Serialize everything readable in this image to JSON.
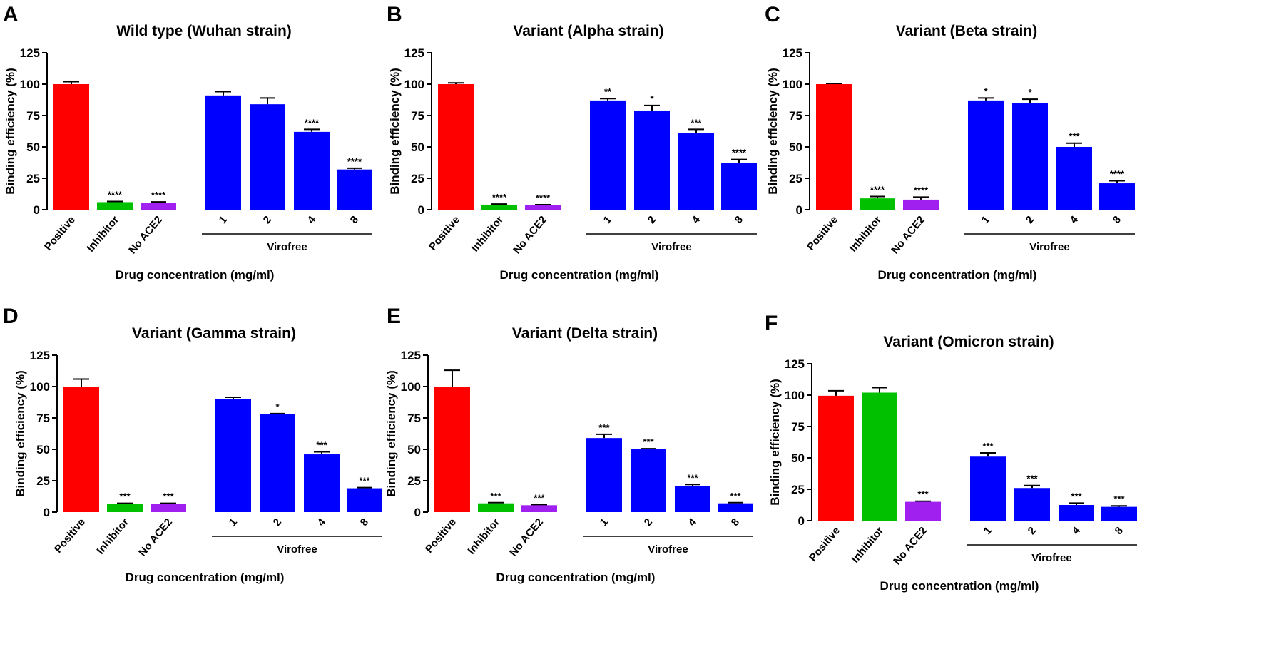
{
  "colors": {
    "positive": "#ff0000",
    "inhibitor": "#00c000",
    "no_ace2": "#a020f0",
    "virofree": "#0000ff"
  },
  "chart_data": [
    {
      "panel": "A",
      "type": "bar",
      "title": "Wild type (Wuhan strain)",
      "ylabel": "Binding efficiency (%)",
      "xlabel": "Drug concentration (mg/ml)",
      "group_label": "Virofree",
      "ylim": [
        0,
        125
      ],
      "yticks": [
        0,
        25,
        50,
        75,
        100,
        125
      ],
      "categories": [
        "Positive",
        "Inhibitor",
        "No ACE2",
        "1",
        "2",
        "4",
        "8"
      ],
      "values": [
        100,
        6,
        5.5,
        91,
        84,
        62,
        32
      ],
      "errors": [
        2,
        0.5,
        0.7,
        3,
        5,
        2,
        1
      ],
      "significance": [
        "",
        "****",
        "****",
        "",
        "",
        "****",
        "****"
      ]
    },
    {
      "panel": "B",
      "type": "bar",
      "title": "Variant (Alpha strain)",
      "ylabel": "Binding efficiency (%)",
      "xlabel": "Drug concentration (mg/ml)",
      "group_label": "Virofree",
      "ylim": [
        0,
        125
      ],
      "yticks": [
        0,
        25,
        50,
        75,
        100,
        125
      ],
      "categories": [
        "Positive",
        "Inhibitor",
        "No ACE2",
        "1",
        "2",
        "4",
        "8"
      ],
      "values": [
        100,
        4,
        3.5,
        87,
        79,
        61,
        37
      ],
      "errors": [
        1,
        0.5,
        0.5,
        1.5,
        4,
        3,
        3
      ],
      "significance": [
        "",
        "****",
        "****",
        "**",
        "*",
        "***",
        "****"
      ]
    },
    {
      "panel": "C",
      "type": "bar",
      "title": "Variant (Beta strain)",
      "ylabel": "Binding efficiency (%)",
      "xlabel": "Drug concentration (mg/ml)",
      "group_label": "Virofree",
      "ylim": [
        0,
        125
      ],
      "yticks": [
        0,
        25,
        50,
        75,
        100,
        125
      ],
      "categories": [
        "Positive",
        "Inhibitor",
        "No ACE2",
        "1",
        "2",
        "4",
        "8"
      ],
      "values": [
        100,
        9,
        8,
        87,
        85,
        50,
        21
      ],
      "errors": [
        0.5,
        1.5,
        2,
        2,
        3,
        3,
        2
      ],
      "significance": [
        "",
        "****",
        "****",
        "*",
        "*",
        "***",
        "****"
      ]
    },
    {
      "panel": "D",
      "type": "bar",
      "title": "Variant (Gamma strain)",
      "ylabel": "Binding efficiency (%)",
      "xlabel": "Drug concentration (mg/ml)",
      "group_label": "Virofree",
      "ylim": [
        0,
        125
      ],
      "yticks": [
        0,
        25,
        50,
        75,
        100,
        125
      ],
      "categories": [
        "Positive",
        "Inhibitor",
        "No ACE2",
        "1",
        "2",
        "4",
        "8"
      ],
      "values": [
        100,
        6.5,
        6.5,
        90,
        78,
        46,
        19
      ],
      "errors": [
        6,
        0.5,
        0.5,
        1.5,
        0.5,
        2,
        0.5
      ],
      "significance": [
        "",
        "***",
        "***",
        "",
        "*",
        "***",
        "***"
      ]
    },
    {
      "panel": "E",
      "type": "bar",
      "title": "Variant (Delta strain)",
      "ylabel": "Binding efficiency (%)",
      "xlabel": "Drug concentration (mg/ml)",
      "group_label": "Virofree",
      "ylim": [
        0,
        125
      ],
      "yticks": [
        0,
        25,
        50,
        75,
        100,
        125
      ],
      "categories": [
        "Positive",
        "Inhibitor",
        "No ACE2",
        "1",
        "2",
        "4",
        "8"
      ],
      "values": [
        100,
        7,
        5.5,
        59,
        50,
        21,
        7
      ],
      "errors": [
        13,
        0.5,
        0.5,
        3,
        0.5,
        1,
        0.5
      ],
      "significance": [
        "",
        "***",
        "***",
        "***",
        "***",
        "***",
        "***"
      ]
    },
    {
      "panel": "F",
      "type": "bar",
      "title": "Variant (Omicron strain)",
      "ylabel": "Binding efficiency (%)",
      "xlabel": "Drug concentration (mg/ml)",
      "group_label": "Virofree",
      "ylim": [
        0,
        125
      ],
      "yticks": [
        0,
        25,
        50,
        75,
        100,
        125
      ],
      "categories": [
        "Positive",
        "Inhibitor",
        "No ACE2",
        "1",
        "2",
        "4",
        "8"
      ],
      "values": [
        99.5,
        102,
        15,
        51,
        26,
        12.5,
        11
      ],
      "errors": [
        4,
        4,
        0.5,
        3,
        2,
        1.5,
        0.8
      ],
      "significance": [
        "",
        "",
        "***",
        "***",
        "***",
        "***",
        "***"
      ]
    }
  ]
}
